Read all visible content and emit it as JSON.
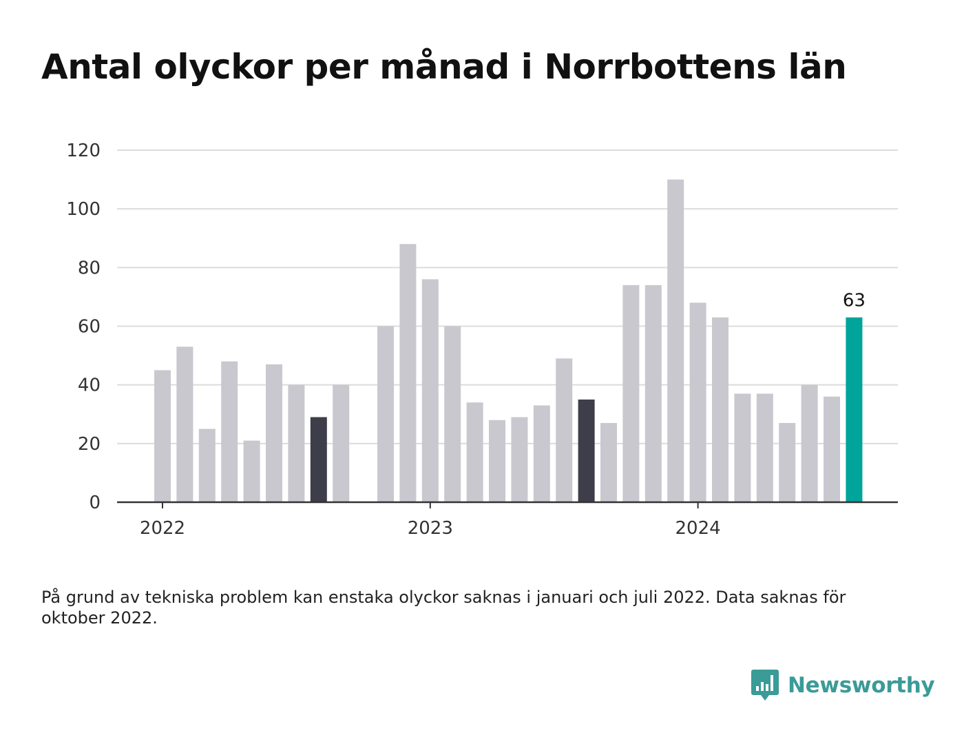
{
  "header": {
    "title": "Antal olyckor per månad i Norrbottens län"
  },
  "colors": {
    "bar_default": "#c9c8cf",
    "bar_highlight": "#3e3d4a",
    "bar_latest": "#00a49a",
    "grid": "#dcdcdc",
    "axis": "#333333",
    "brand": "#3a9b97"
  },
  "chart_data": {
    "type": "bar",
    "title": "Antal olyckor per månad i Norrbottens län",
    "xlabel": "",
    "ylabel": "",
    "ylim": [
      0,
      120
    ],
    "yticks": [
      0,
      20,
      40,
      60,
      80,
      100,
      120
    ],
    "year_ticks": [
      "2022",
      "2023",
      "2024"
    ],
    "grid": true,
    "months": [
      "2022-01",
      "2022-02",
      "2022-03",
      "2022-04",
      "2022-05",
      "2022-06",
      "2022-07",
      "2022-08",
      "2022-09",
      "2022-10",
      "2022-11",
      "2022-12",
      "2023-01",
      "2023-02",
      "2023-03",
      "2023-04",
      "2023-05",
      "2023-06",
      "2023-07",
      "2023-08",
      "2023-09",
      "2023-10",
      "2023-11",
      "2023-12",
      "2024-01",
      "2024-02",
      "2024-03",
      "2024-04",
      "2024-05",
      "2024-06",
      "2024-07",
      "2024-08"
    ],
    "values": [
      45,
      53,
      25,
      48,
      21,
      47,
      40,
      29,
      40,
      null,
      60,
      88,
      76,
      60,
      34,
      28,
      29,
      33,
      49,
      35,
      27,
      74,
      74,
      110,
      68,
      63,
      37,
      37,
      27,
      40,
      36,
      63
    ],
    "highlight_months": [
      "2022-08",
      "2023-08"
    ],
    "latest_month": "2024-08",
    "latest_label": "63"
  },
  "footnote": "På grund av tekniska problem kan enstaka olyckor saknas i januari och juli 2022. Data saknas för oktober 2022.",
  "brand": {
    "name": "Newsworthy",
    "icon": "bar-chart-speech-bubble-icon"
  }
}
